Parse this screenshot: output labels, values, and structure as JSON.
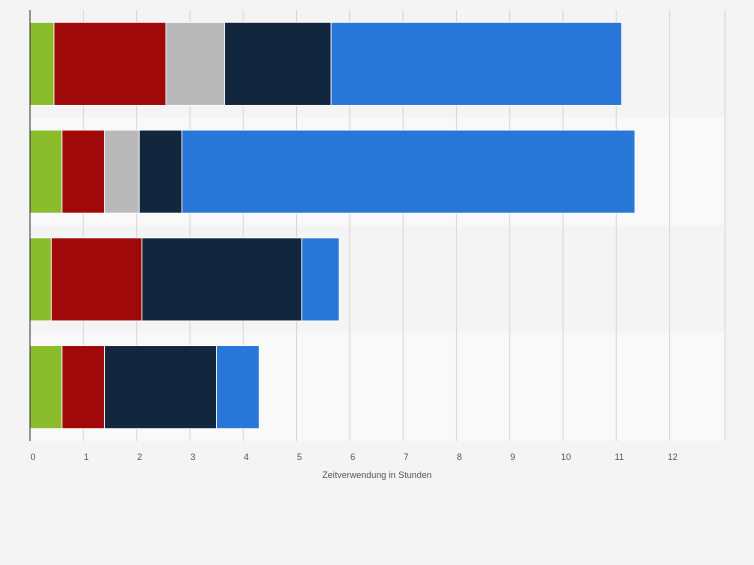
{
  "chart_data": {
    "type": "bar",
    "orientation": "horizontal",
    "stacked": true,
    "categories": [
      "",
      "",
      "",
      ""
    ],
    "x_ticks": [
      "0",
      "1",
      "2",
      "3",
      "4",
      "5",
      "6",
      "7",
      "8",
      "9",
      "10",
      "11",
      "12"
    ],
    "xlim": [
      0,
      13
    ],
    "xlabel": "Zeitverwendung in Stunden",
    "ylabel": "",
    "title": "",
    "grid": true,
    "legend": "none",
    "series": [
      {
        "color": "#8bbc2b",
        "values": [
          0.45,
          0.6,
          0.4,
          0.6
        ]
      },
      {
        "color": "#a0090a",
        "values": [
          2.1,
          0.8,
          1.7,
          0.8
        ]
      },
      {
        "color": "#b9b9b9",
        "values": [
          1.1,
          0.65,
          0,
          0
        ]
      },
      {
        "color": "#12263d",
        "values": [
          2.0,
          0.8,
          3.0,
          2.1
        ]
      },
      {
        "color": "#2776d8",
        "values": [
          5.45,
          8.5,
          0.7,
          0.8
        ]
      }
    ],
    "colors": {
      "band_light": "#f4f4f4",
      "band_lighter": "#f9f9f9",
      "gridline": "#d7d7d7",
      "axis": "#333333",
      "tick_text": "#555555"
    }
  }
}
